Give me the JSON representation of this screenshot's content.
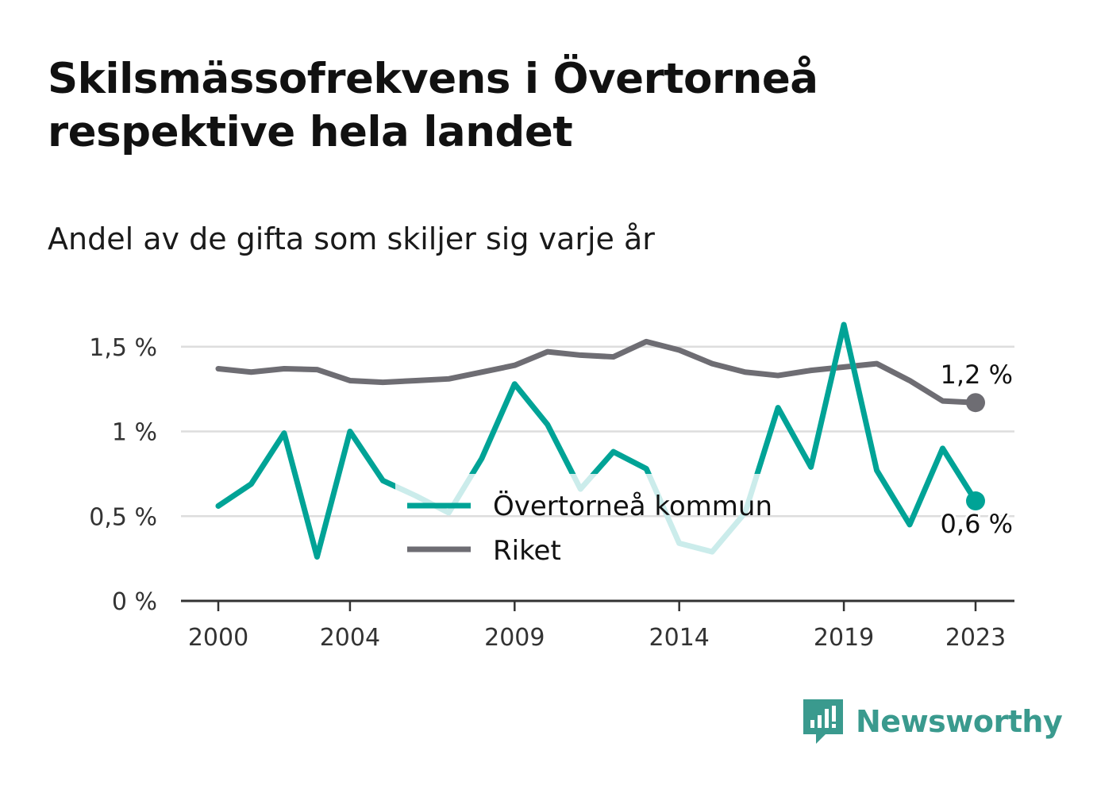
{
  "header": {
    "title": "Skilsmässofrekvens i Övertorneå respektive hela landet",
    "subtitle": "Andel av de gifta som skiljer sig varje år"
  },
  "branding": {
    "name": "Newsworthy",
    "color": "#3a9a8e"
  },
  "chart_data": {
    "type": "line",
    "x": [
      2000,
      2001,
      2002,
      2003,
      2004,
      2005,
      2006,
      2007,
      2008,
      2009,
      2010,
      2011,
      2012,
      2013,
      2014,
      2015,
      2016,
      2017,
      2018,
      2019,
      2020,
      2021,
      2022,
      2023
    ],
    "x_tick_labels": [
      "2000",
      "2004",
      "2009",
      "2014",
      "2019",
      "2023"
    ],
    "y_ticks": [
      0,
      0.5,
      1,
      1.5
    ],
    "y_tick_labels": [
      "0 %",
      "0,5 %",
      "1 %",
      "1,5 %"
    ],
    "ylim": [
      0,
      1.62
    ],
    "grid": true,
    "legend_position": "center-bottom",
    "series": [
      {
        "name": "Övertorneå kommun",
        "color": "#00a396",
        "faded_color": "#cbeceb",
        "values": [
          0.56,
          0.69,
          0.99,
          0.26,
          1.0,
          0.71,
          0.62,
          0.52,
          0.84,
          1.28,
          1.04,
          0.66,
          0.88,
          0.78,
          0.34,
          0.29,
          0.52,
          1.14,
          0.79,
          1.63,
          0.77,
          0.45,
          0.9,
          0.59
        ],
        "end_label": "0,6 %"
      },
      {
        "name": "Riket",
        "color": "#6e6d73",
        "values": [
          1.37,
          1.35,
          1.37,
          1.365,
          1.3,
          1.29,
          1.3,
          1.31,
          1.35,
          1.39,
          1.47,
          1.45,
          1.44,
          1.53,
          1.48,
          1.4,
          1.35,
          1.33,
          1.36,
          1.38,
          1.4,
          1.3,
          1.18,
          1.17
        ],
        "end_label": "1,2 %"
      }
    ]
  }
}
